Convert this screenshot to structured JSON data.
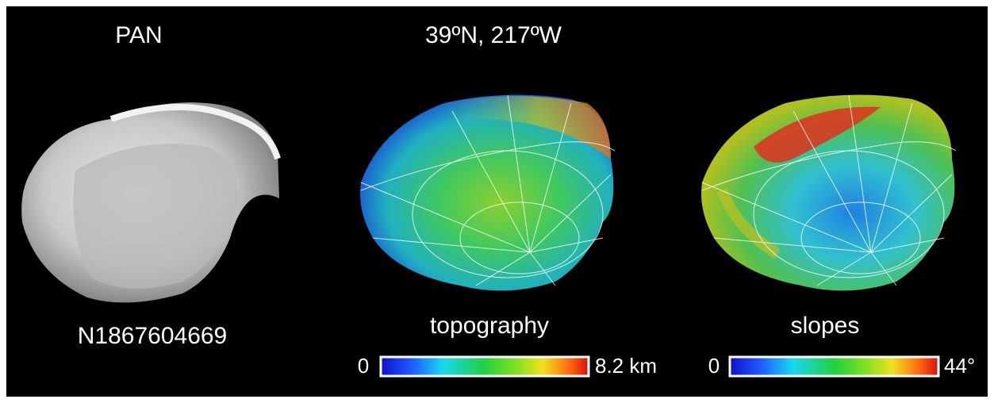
{
  "labels": {
    "object": "PAN",
    "coordinates": "39ºN, 217ºW",
    "image_id": "N1867604669",
    "topography_title": "topography",
    "slopes_title": "slopes"
  },
  "colorbars": [
    {
      "min_label": "0",
      "max_label": "8.2 km"
    },
    {
      "min_label": "0",
      "max_label": "44°"
    }
  ]
}
